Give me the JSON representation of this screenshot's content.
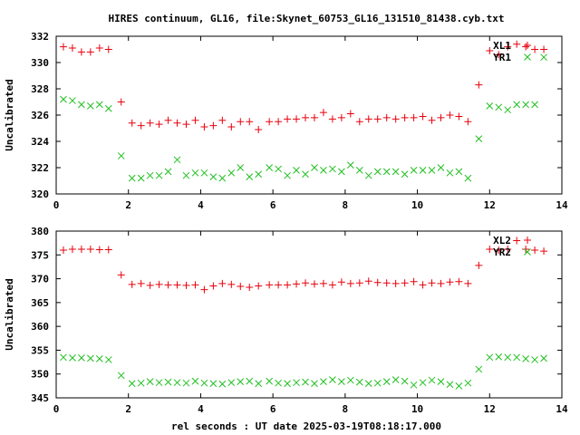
{
  "chart_data": {
    "title": "HIRES continuum, GL16, file:Skynet_60753_GL16_131510_81438.cyb.txt",
    "xlabel": "rel seconds : UT date 2025-03-19T08:18:17.000",
    "panels": [
      {
        "type": "scatter",
        "ylabel": "Uncalibrated",
        "xlim": [
          0,
          14
        ],
        "ylim": [
          320,
          332
        ],
        "xticks": [
          0,
          2,
          4,
          6,
          8,
          10,
          12,
          14
        ],
        "yticks": [
          320,
          322,
          324,
          326,
          328,
          330,
          332
        ],
        "legend_position": "top-right",
        "series": [
          {
            "name": "XL1",
            "marker": "plus",
            "color": "#e8000b",
            "points": [
              [
                0.2,
                331.2
              ],
              [
                0.45,
                331.1
              ],
              [
                0.7,
                330.8
              ],
              [
                0.95,
                330.8
              ],
              [
                1.2,
                331.1
              ],
              [
                1.45,
                331.0
              ],
              [
                1.8,
                327.0
              ],
              [
                2.1,
                325.4
              ],
              [
                2.35,
                325.2
              ],
              [
                2.6,
                325.4
              ],
              [
                2.85,
                325.3
              ],
              [
                3.1,
                325.6
              ],
              [
                3.35,
                325.4
              ],
              [
                3.6,
                325.3
              ],
              [
                3.85,
                325.6
              ],
              [
                4.1,
                325.1
              ],
              [
                4.35,
                325.2
              ],
              [
                4.6,
                325.6
              ],
              [
                4.85,
                325.1
              ],
              [
                5.1,
                325.5
              ],
              [
                5.35,
                325.5
              ],
              [
                5.6,
                324.9
              ],
              [
                5.9,
                325.5
              ],
              [
                6.15,
                325.5
              ],
              [
                6.4,
                325.7
              ],
              [
                6.65,
                325.7
              ],
              [
                6.9,
                325.8
              ],
              [
                7.15,
                325.8
              ],
              [
                7.4,
                326.2
              ],
              [
                7.65,
                325.7
              ],
              [
                7.9,
                325.8
              ],
              [
                8.15,
                326.1
              ],
              [
                8.4,
                325.5
              ],
              [
                8.65,
                325.7
              ],
              [
                8.9,
                325.7
              ],
              [
                9.15,
                325.8
              ],
              [
                9.4,
                325.7
              ],
              [
                9.65,
                325.8
              ],
              [
                9.9,
                325.8
              ],
              [
                10.15,
                325.9
              ],
              [
                10.4,
                325.6
              ],
              [
                10.65,
                325.8
              ],
              [
                10.9,
                326.0
              ],
              [
                11.15,
                325.9
              ],
              [
                11.4,
                325.5
              ],
              [
                11.7,
                328.3
              ],
              [
                12.0,
                330.9
              ],
              [
                12.25,
                330.6
              ],
              [
                12.5,
                331.2
              ],
              [
                12.75,
                331.4
              ],
              [
                13.0,
                331.2
              ],
              [
                13.25,
                331.0
              ],
              [
                13.5,
                331.0
              ]
            ]
          },
          {
            "name": "YR1",
            "marker": "cross",
            "color": "#1fbf1f",
            "points": [
              [
                0.2,
                327.2
              ],
              [
                0.45,
                327.1
              ],
              [
                0.7,
                326.8
              ],
              [
                0.95,
                326.7
              ],
              [
                1.2,
                326.8
              ],
              [
                1.45,
                326.5
              ],
              [
                1.8,
                322.9
              ],
              [
                2.1,
                321.2
              ],
              [
                2.35,
                321.2
              ],
              [
                2.6,
                321.4
              ],
              [
                2.85,
                321.4
              ],
              [
                3.1,
                321.7
              ],
              [
                3.35,
                322.6
              ],
              [
                3.6,
                321.4
              ],
              [
                3.85,
                321.6
              ],
              [
                4.1,
                321.6
              ],
              [
                4.35,
                321.3
              ],
              [
                4.6,
                321.2
              ],
              [
                4.85,
                321.6
              ],
              [
                5.1,
                322.0
              ],
              [
                5.35,
                321.3
              ],
              [
                5.6,
                321.5
              ],
              [
                5.9,
                322.0
              ],
              [
                6.15,
                321.9
              ],
              [
                6.4,
                321.4
              ],
              [
                6.65,
                321.8
              ],
              [
                6.9,
                321.5
              ],
              [
                7.15,
                322.0
              ],
              [
                7.4,
                321.8
              ],
              [
                7.65,
                321.9
              ],
              [
                7.9,
                321.7
              ],
              [
                8.15,
                322.2
              ],
              [
                8.4,
                321.8
              ],
              [
                8.65,
                321.4
              ],
              [
                8.9,
                321.7
              ],
              [
                9.15,
                321.7
              ],
              [
                9.4,
                321.7
              ],
              [
                9.65,
                321.5
              ],
              [
                9.9,
                321.8
              ],
              [
                10.15,
                321.8
              ],
              [
                10.4,
                321.8
              ],
              [
                10.65,
                322.0
              ],
              [
                10.9,
                321.6
              ],
              [
                11.15,
                321.7
              ],
              [
                11.4,
                321.2
              ],
              [
                11.7,
                324.2
              ],
              [
                12.0,
                326.7
              ],
              [
                12.25,
                326.6
              ],
              [
                12.5,
                326.4
              ],
              [
                12.75,
                326.8
              ],
              [
                13.0,
                326.8
              ],
              [
                13.25,
                326.8
              ],
              [
                13.5,
                330.4
              ]
            ]
          }
        ]
      },
      {
        "type": "scatter",
        "ylabel": "Uncalibrated",
        "xlim": [
          0,
          14
        ],
        "ylim": [
          345,
          380
        ],
        "xticks": [
          0,
          2,
          4,
          6,
          8,
          10,
          12,
          14
        ],
        "yticks": [
          345,
          350,
          355,
          360,
          365,
          370,
          375,
          380
        ],
        "legend_position": "top-right",
        "series": [
          {
            "name": "XL2",
            "marker": "plus",
            "color": "#e8000b",
            "points": [
              [
                0.2,
                376.0
              ],
              [
                0.45,
                376.2
              ],
              [
                0.7,
                376.2
              ],
              [
                0.95,
                376.2
              ],
              [
                1.2,
                376.1
              ],
              [
                1.45,
                376.1
              ],
              [
                1.8,
                370.8
              ],
              [
                2.1,
                368.8
              ],
              [
                2.35,
                369.0
              ],
              [
                2.6,
                368.6
              ],
              [
                2.85,
                368.8
              ],
              [
                3.1,
                368.7
              ],
              [
                3.35,
                368.7
              ],
              [
                3.6,
                368.6
              ],
              [
                3.85,
                368.7
              ],
              [
                4.1,
                367.7
              ],
              [
                4.35,
                368.5
              ],
              [
                4.6,
                369.0
              ],
              [
                4.85,
                368.8
              ],
              [
                5.1,
                368.4
              ],
              [
                5.35,
                368.2
              ],
              [
                5.6,
                368.5
              ],
              [
                5.9,
                368.7
              ],
              [
                6.15,
                368.7
              ],
              [
                6.4,
                368.7
              ],
              [
                6.65,
                368.9
              ],
              [
                6.9,
                369.1
              ],
              [
                7.15,
                368.9
              ],
              [
                7.4,
                369.0
              ],
              [
                7.65,
                368.7
              ],
              [
                7.9,
                369.3
              ],
              [
                8.15,
                369.0
              ],
              [
                8.4,
                369.1
              ],
              [
                8.65,
                369.5
              ],
              [
                8.9,
                369.2
              ],
              [
                9.15,
                369.1
              ],
              [
                9.4,
                369.0
              ],
              [
                9.65,
                369.1
              ],
              [
                9.9,
                369.4
              ],
              [
                10.15,
                368.7
              ],
              [
                10.4,
                369.1
              ],
              [
                10.65,
                369.0
              ],
              [
                10.9,
                369.3
              ],
              [
                11.15,
                369.4
              ],
              [
                11.4,
                369.0
              ],
              [
                11.7,
                372.8
              ],
              [
                12.0,
                376.2
              ],
              [
                12.25,
                376.0
              ],
              [
                12.5,
                376.2
              ],
              [
                12.75,
                378.0
              ],
              [
                13.0,
                376.2
              ],
              [
                13.25,
                376.0
              ],
              [
                13.5,
                375.8
              ]
            ]
          },
          {
            "name": "YR2",
            "marker": "cross",
            "color": "#1fbf1f",
            "points": [
              [
                0.2,
                353.5
              ],
              [
                0.45,
                353.4
              ],
              [
                0.7,
                353.4
              ],
              [
                0.95,
                353.3
              ],
              [
                1.2,
                353.2
              ],
              [
                1.45,
                353.0
              ],
              [
                1.8,
                349.7
              ],
              [
                2.1,
                348.0
              ],
              [
                2.35,
                348.1
              ],
              [
                2.6,
                348.4
              ],
              [
                2.85,
                348.2
              ],
              [
                3.1,
                348.3
              ],
              [
                3.35,
                348.2
              ],
              [
                3.6,
                348.1
              ],
              [
                3.85,
                348.5
              ],
              [
                4.1,
                348.1
              ],
              [
                4.35,
                348.0
              ],
              [
                4.6,
                347.9
              ],
              [
                4.85,
                348.2
              ],
              [
                5.1,
                348.4
              ],
              [
                5.35,
                348.5
              ],
              [
                5.6,
                348.0
              ],
              [
                5.9,
                348.5
              ],
              [
                6.15,
                348.1
              ],
              [
                6.4,
                348.0
              ],
              [
                6.65,
                348.2
              ],
              [
                6.9,
                348.3
              ],
              [
                7.15,
                348.0
              ],
              [
                7.4,
                348.4
              ],
              [
                7.65,
                348.8
              ],
              [
                7.9,
                348.4
              ],
              [
                8.15,
                348.7
              ],
              [
                8.4,
                348.3
              ],
              [
                8.65,
                348.0
              ],
              [
                8.9,
                348.1
              ],
              [
                9.15,
                348.4
              ],
              [
                9.4,
                348.8
              ],
              [
                9.65,
                348.5
              ],
              [
                9.9,
                347.7
              ],
              [
                10.15,
                348.2
              ],
              [
                10.4,
                348.7
              ],
              [
                10.65,
                348.4
              ],
              [
                10.9,
                347.8
              ],
              [
                11.15,
                347.5
              ],
              [
                11.4,
                348.1
              ],
              [
                11.7,
                351.0
              ],
              [
                12.0,
                353.5
              ],
              [
                12.25,
                353.6
              ],
              [
                12.5,
                353.5
              ],
              [
                12.75,
                353.5
              ],
              [
                13.0,
                353.2
              ],
              [
                13.25,
                353.0
              ],
              [
                13.5,
                353.3
              ]
            ]
          }
        ]
      }
    ]
  }
}
